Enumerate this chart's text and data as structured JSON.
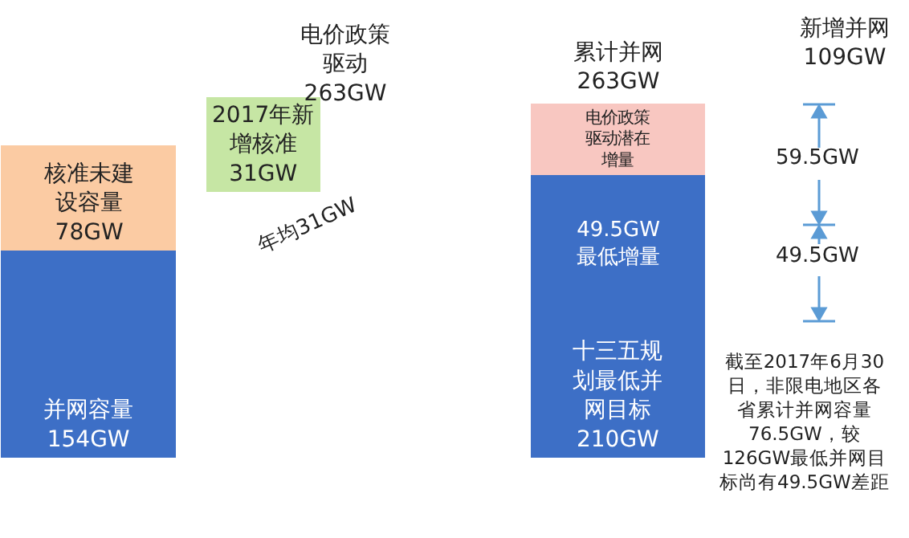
{
  "chart_data": {
    "type": "bar",
    "stacked": true,
    "categories": [
      null,
      null
    ],
    "series": [
      {
        "color": "#3d6fc6",
        "values": [
          154,
          210
        ],
        "value_labels": [
          "并网容量154GW",
          "十三五规划最低并网目标210GW"
        ]
      },
      {
        "color": "#fbcba3",
        "values": [
          78,
          null
        ],
        "value_labels": [
          "核准未建设容量78GW",
          null
        ]
      },
      {
        "color": "#f8c7c1",
        "values": [
          null,
          53
        ],
        "value_labels": [
          null,
          "电价政策驱动潜在增量"
        ]
      }
    ],
    "totals": [
      null,
      "累计并网263GW"
    ],
    "annotations": [
      "2017年新增核准31GW",
      "电价政策驱动263GW",
      "年均31GW",
      "新增并网109GW",
      "59.5GW",
      "49.5GW",
      "截至2017年6月30日，非限电地区各省累计并网容量76.5GW，较126GW最低并网目标尚有49.5GW差距",
      "49.5GW最低增量"
    ]
  }
}
